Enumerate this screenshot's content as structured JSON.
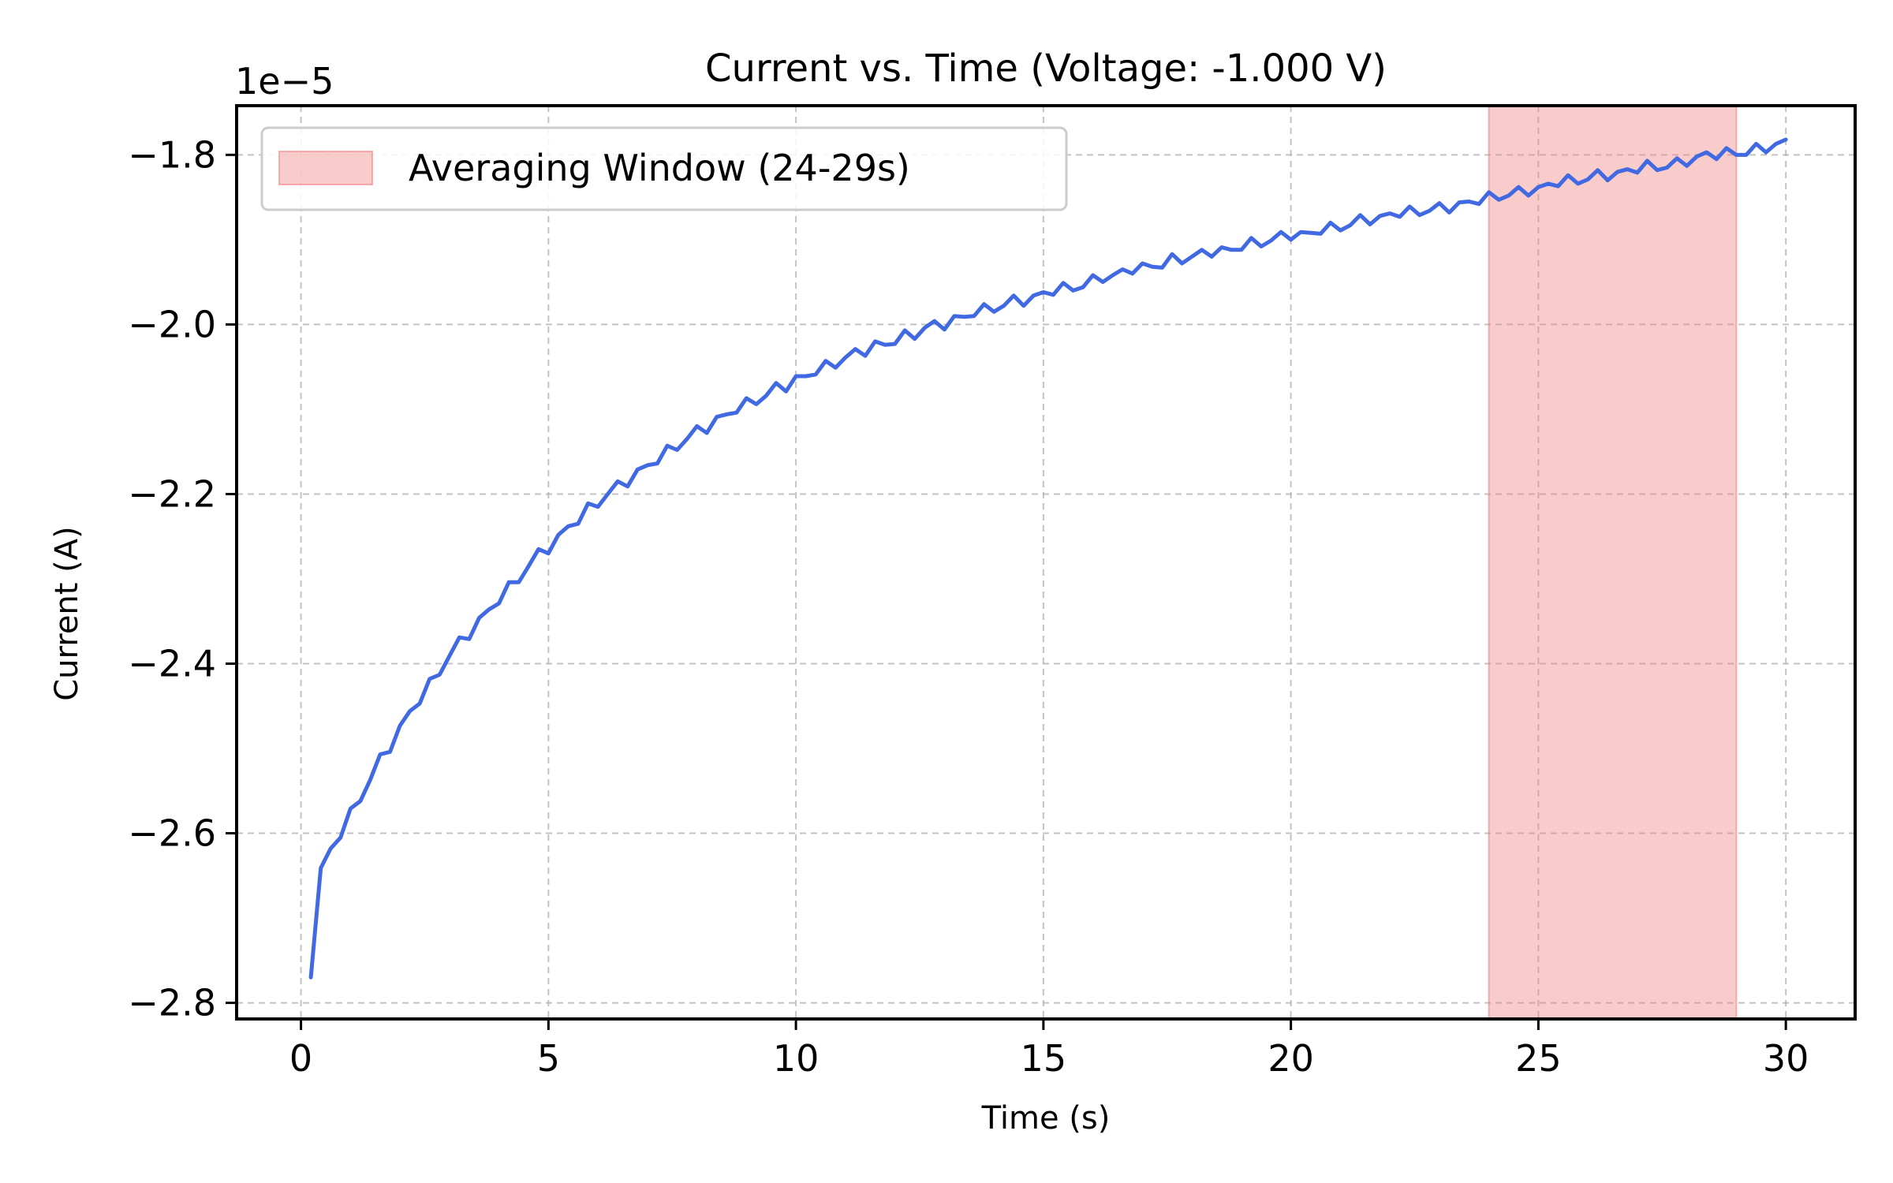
{
  "chart_data": {
    "type": "line",
    "title": "Current vs. Time (Voltage: -1.000 V)",
    "xlabel": "Time (s)",
    "ylabel": "Current (A)",
    "y_offset_label": "1e−5",
    "xlim": [
      -1.3,
      31.4
    ],
    "ylim": [
      -2.819,
      -1.742
    ],
    "y_scale_factor": 1e-05,
    "x_ticks": [
      0,
      5,
      10,
      15,
      20,
      25,
      30
    ],
    "x_tick_labels": [
      "0",
      "5",
      "10",
      "15",
      "20",
      "25",
      "30"
    ],
    "y_ticks": [
      -2.8,
      -2.6,
      -2.4,
      -2.2,
      -2.0,
      -1.8
    ],
    "y_tick_labels": [
      "−2.8",
      "−2.6",
      "−2.4",
      "−2.2",
      "−2.0",
      "−1.8"
    ],
    "grid": true,
    "legend_position": "top-left",
    "span": {
      "name": "Averaging Window (24-29s)",
      "x_start": 24,
      "x_end": 29,
      "color": "#f08080"
    },
    "series": [
      {
        "color": "#4169e1",
        "x": [
          0.2,
          0.4,
          0.6,
          0.8,
          1.0,
          1.2,
          1.4,
          1.6,
          1.8,
          2.0,
          2.2,
          2.4,
          2.6,
          2.8,
          3.0,
          3.2,
          3.4,
          3.6,
          3.8,
          4.0,
          4.2,
          4.4,
          4.6,
          4.8,
          5.0,
          5.2,
          5.4,
          5.6,
          5.8,
          6.0,
          6.2,
          6.4,
          6.6,
          6.8,
          7.0,
          7.2,
          7.4,
          7.6,
          7.8,
          8.0,
          8.2,
          8.4,
          8.6,
          8.8,
          9.0,
          9.2,
          9.4,
          9.6,
          9.8,
          10.0,
          10.2,
          10.4,
          10.6,
          10.8,
          11.0,
          11.2,
          11.4,
          11.6,
          11.8,
          12.0,
          12.2,
          12.4,
          12.6,
          12.8,
          13.0,
          13.2,
          13.4,
          13.6,
          13.8,
          14.0,
          14.2,
          14.4,
          14.6,
          14.8,
          15.0,
          15.2,
          15.4,
          15.6,
          15.8,
          16.0,
          16.2,
          16.4,
          16.6,
          16.8,
          17.0,
          17.2,
          17.4,
          17.6,
          17.8,
          18.0,
          18.2,
          18.4,
          18.6,
          18.8,
          19.0,
          19.2,
          19.4,
          19.6,
          19.8,
          20.0,
          20.2,
          20.4,
          20.6,
          20.8,
          21.0,
          21.2,
          21.4,
          21.6,
          21.8,
          22.0,
          22.2,
          22.4,
          22.6,
          22.8,
          23.0,
          23.2,
          23.4,
          23.6,
          23.8,
          24.0,
          24.2,
          24.4,
          24.6,
          24.8,
          25.0,
          25.2,
          25.4,
          25.6,
          25.8,
          26.0,
          26.2,
          26.4,
          26.6,
          26.8,
          27.0,
          27.2,
          27.4,
          27.6,
          27.8,
          28.0,
          28.2,
          28.4,
          28.6,
          28.8,
          29.0,
          29.2,
          29.4,
          29.6,
          29.8,
          30.0
        ],
        "y": [
          -2.77,
          -2.641,
          -2.618,
          -2.605,
          -2.571,
          -2.562,
          -2.537,
          -2.507,
          -2.504,
          -2.473,
          -2.456,
          -2.447,
          -2.418,
          -2.413,
          -2.391,
          -2.369,
          -2.371,
          -2.346,
          -2.336,
          -2.329,
          -2.304,
          -2.304,
          -2.285,
          -2.265,
          -2.27,
          -2.248,
          -2.238,
          -2.235,
          -2.211,
          -2.215,
          -2.2,
          -2.185,
          -2.191,
          -2.171,
          -2.166,
          -2.164,
          -2.143,
          -2.148,
          -2.135,
          -2.12,
          -2.128,
          -2.109,
          -2.106,
          -2.104,
          -2.087,
          -2.094,
          -2.084,
          -2.069,
          -2.079,
          -2.061,
          -2.061,
          -2.059,
          -2.043,
          -2.051,
          -2.039,
          -2.029,
          -2.037,
          -2.02,
          -2.024,
          -2.023,
          -2.007,
          -2.017,
          -2.004,
          -1.996,
          -2.006,
          -1.99,
          -1.991,
          -1.99,
          -1.976,
          -1.985,
          -1.978,
          -1.966,
          -1.978,
          -1.966,
          -1.962,
          -1.965,
          -1.951,
          -1.96,
          -1.956,
          -1.942,
          -1.95,
          -1.942,
          -1.935,
          -1.94,
          -1.928,
          -1.932,
          -1.933,
          -1.917,
          -1.928,
          -1.92,
          -1.912,
          -1.92,
          -1.909,
          -1.912,
          -1.912,
          -1.898,
          -1.908,
          -1.901,
          -1.891,
          -1.9,
          -1.891,
          -1.892,
          -1.893,
          -1.88,
          -1.889,
          -1.883,
          -1.871,
          -1.882,
          -1.872,
          -1.869,
          -1.873,
          -1.861,
          -1.871,
          -1.866,
          -1.857,
          -1.868,
          -1.856,
          -1.855,
          -1.858,
          -1.844,
          -1.853,
          -1.848,
          -1.838,
          -1.848,
          -1.838,
          -1.834,
          -1.837,
          -1.824,
          -1.834,
          -1.829,
          -1.818,
          -1.83,
          -1.82,
          -1.817,
          -1.821,
          -1.807,
          -1.818,
          -1.815,
          -1.804,
          -1.813,
          -1.802,
          -1.797,
          -1.805,
          -1.792,
          -1.8,
          -1.8,
          -1.787,
          -1.797,
          -1.787,
          -1.782
        ]
      }
    ]
  }
}
